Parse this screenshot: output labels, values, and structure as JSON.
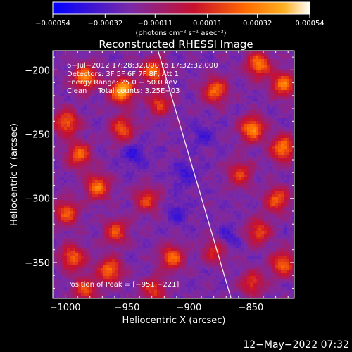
{
  "chart_data": {
    "type": "heatmap",
    "title": "Reconstructed RHESSI Image",
    "xlabel": "Heliocentric X (arcsec)",
    "ylabel": "Heliocentric Y (arcsec)",
    "xlim": [
      -1010,
      -815
    ],
    "ylim": [
      -378,
      -185
    ],
    "xticks": [
      -1000,
      -950,
      -900,
      -850
    ],
    "xtick_labels": [
      "−1000",
      "−950",
      "−900",
      "−850"
    ],
    "yticks": [
      -200,
      -250,
      -300,
      -350
    ],
    "ytick_labels": [
      "−200",
      "−250",
      "−300",
      "−350"
    ],
    "colorbar": {
      "range": [
        -0.00054,
        0.00054
      ],
      "ticks": [
        -0.00054,
        -0.00032,
        -0.00011,
        0.00011,
        0.00032,
        0.00054
      ],
      "tick_labels": [
        "−0.00054",
        "−0.00032",
        "−0.00011",
        "0.00011",
        "0.00032",
        "0.00054"
      ],
      "units_label": "(photons cm⁻² s⁻¹ asec⁻²)",
      "colors": [
        "#0000ff",
        "#7a2aa8",
        "#c8102e",
        "#ff6a00",
        "#ffb020",
        "#ffffff"
      ]
    },
    "annotations": {
      "time": "6−Jul−2012 17:28:32.000 to 17:32:32.000",
      "detectors": "Detectors: 3F 5F 6F 7F 8F, Att 1",
      "energy": "Energy Range: 25.0 − 50.0 keV",
      "clean": "Clean     Total counts: 3.25E+03",
      "peak": "Position of Peak = [−951,−221]"
    },
    "peak": [
      -951,
      -221
    ],
    "limb_line": [
      [
        -925,
        -185
      ],
      [
        -866,
        -378
      ]
    ],
    "hot_spots": [
      {
        "x": -955,
        "y": -215,
        "v": 1.0
      },
      {
        "x": -985,
        "y": -205,
        "v": 0.85
      },
      {
        "x": -930,
        "y": -200,
        "v": 0.75
      },
      {
        "x": -1000,
        "y": -240,
        "v": 0.7
      },
      {
        "x": -990,
        "y": -265,
        "v": 0.7
      },
      {
        "x": -955,
        "y": -245,
        "v": 0.65
      },
      {
        "x": -925,
        "y": -225,
        "v": 0.55
      },
      {
        "x": -975,
        "y": -290,
        "v": 0.75
      },
      {
        "x": -1000,
        "y": -310,
        "v": 0.65
      },
      {
        "x": -960,
        "y": -325,
        "v": 0.6
      },
      {
        "x": -995,
        "y": -345,
        "v": 0.7
      },
      {
        "x": -965,
        "y": -355,
        "v": 0.75
      },
      {
        "x": -985,
        "y": -370,
        "v": 0.6
      },
      {
        "x": -935,
        "y": -300,
        "v": 0.55
      },
      {
        "x": -915,
        "y": -345,
        "v": 0.7
      },
      {
        "x": -930,
        "y": -370,
        "v": 0.55
      },
      {
        "x": -880,
        "y": -215,
        "v": 0.7
      },
      {
        "x": -845,
        "y": -195,
        "v": 0.8
      },
      {
        "x": -825,
        "y": -210,
        "v": 0.75
      },
      {
        "x": -850,
        "y": -245,
        "v": 0.85
      },
      {
        "x": -825,
        "y": -260,
        "v": 0.8
      },
      {
        "x": -860,
        "y": -280,
        "v": 0.55
      },
      {
        "x": -830,
        "y": -300,
        "v": 0.65
      },
      {
        "x": -845,
        "y": -325,
        "v": 0.6
      },
      {
        "x": -825,
        "y": -350,
        "v": 0.7
      },
      {
        "x": -850,
        "y": -365,
        "v": 0.55
      },
      {
        "x": -880,
        "y": -340,
        "v": 0.5
      }
    ],
    "cold_spots": [
      {
        "x": -945,
        "y": -265,
        "v": 0.7
      },
      {
        "x": -905,
        "y": -280,
        "v": 0.6
      },
      {
        "x": -890,
        "y": -250,
        "v": 0.55
      },
      {
        "x": -870,
        "y": -330,
        "v": 0.6
      },
      {
        "x": -910,
        "y": -310,
        "v": 0.5
      }
    ]
  },
  "footer": {
    "date": "12−May−2022 07:32"
  }
}
